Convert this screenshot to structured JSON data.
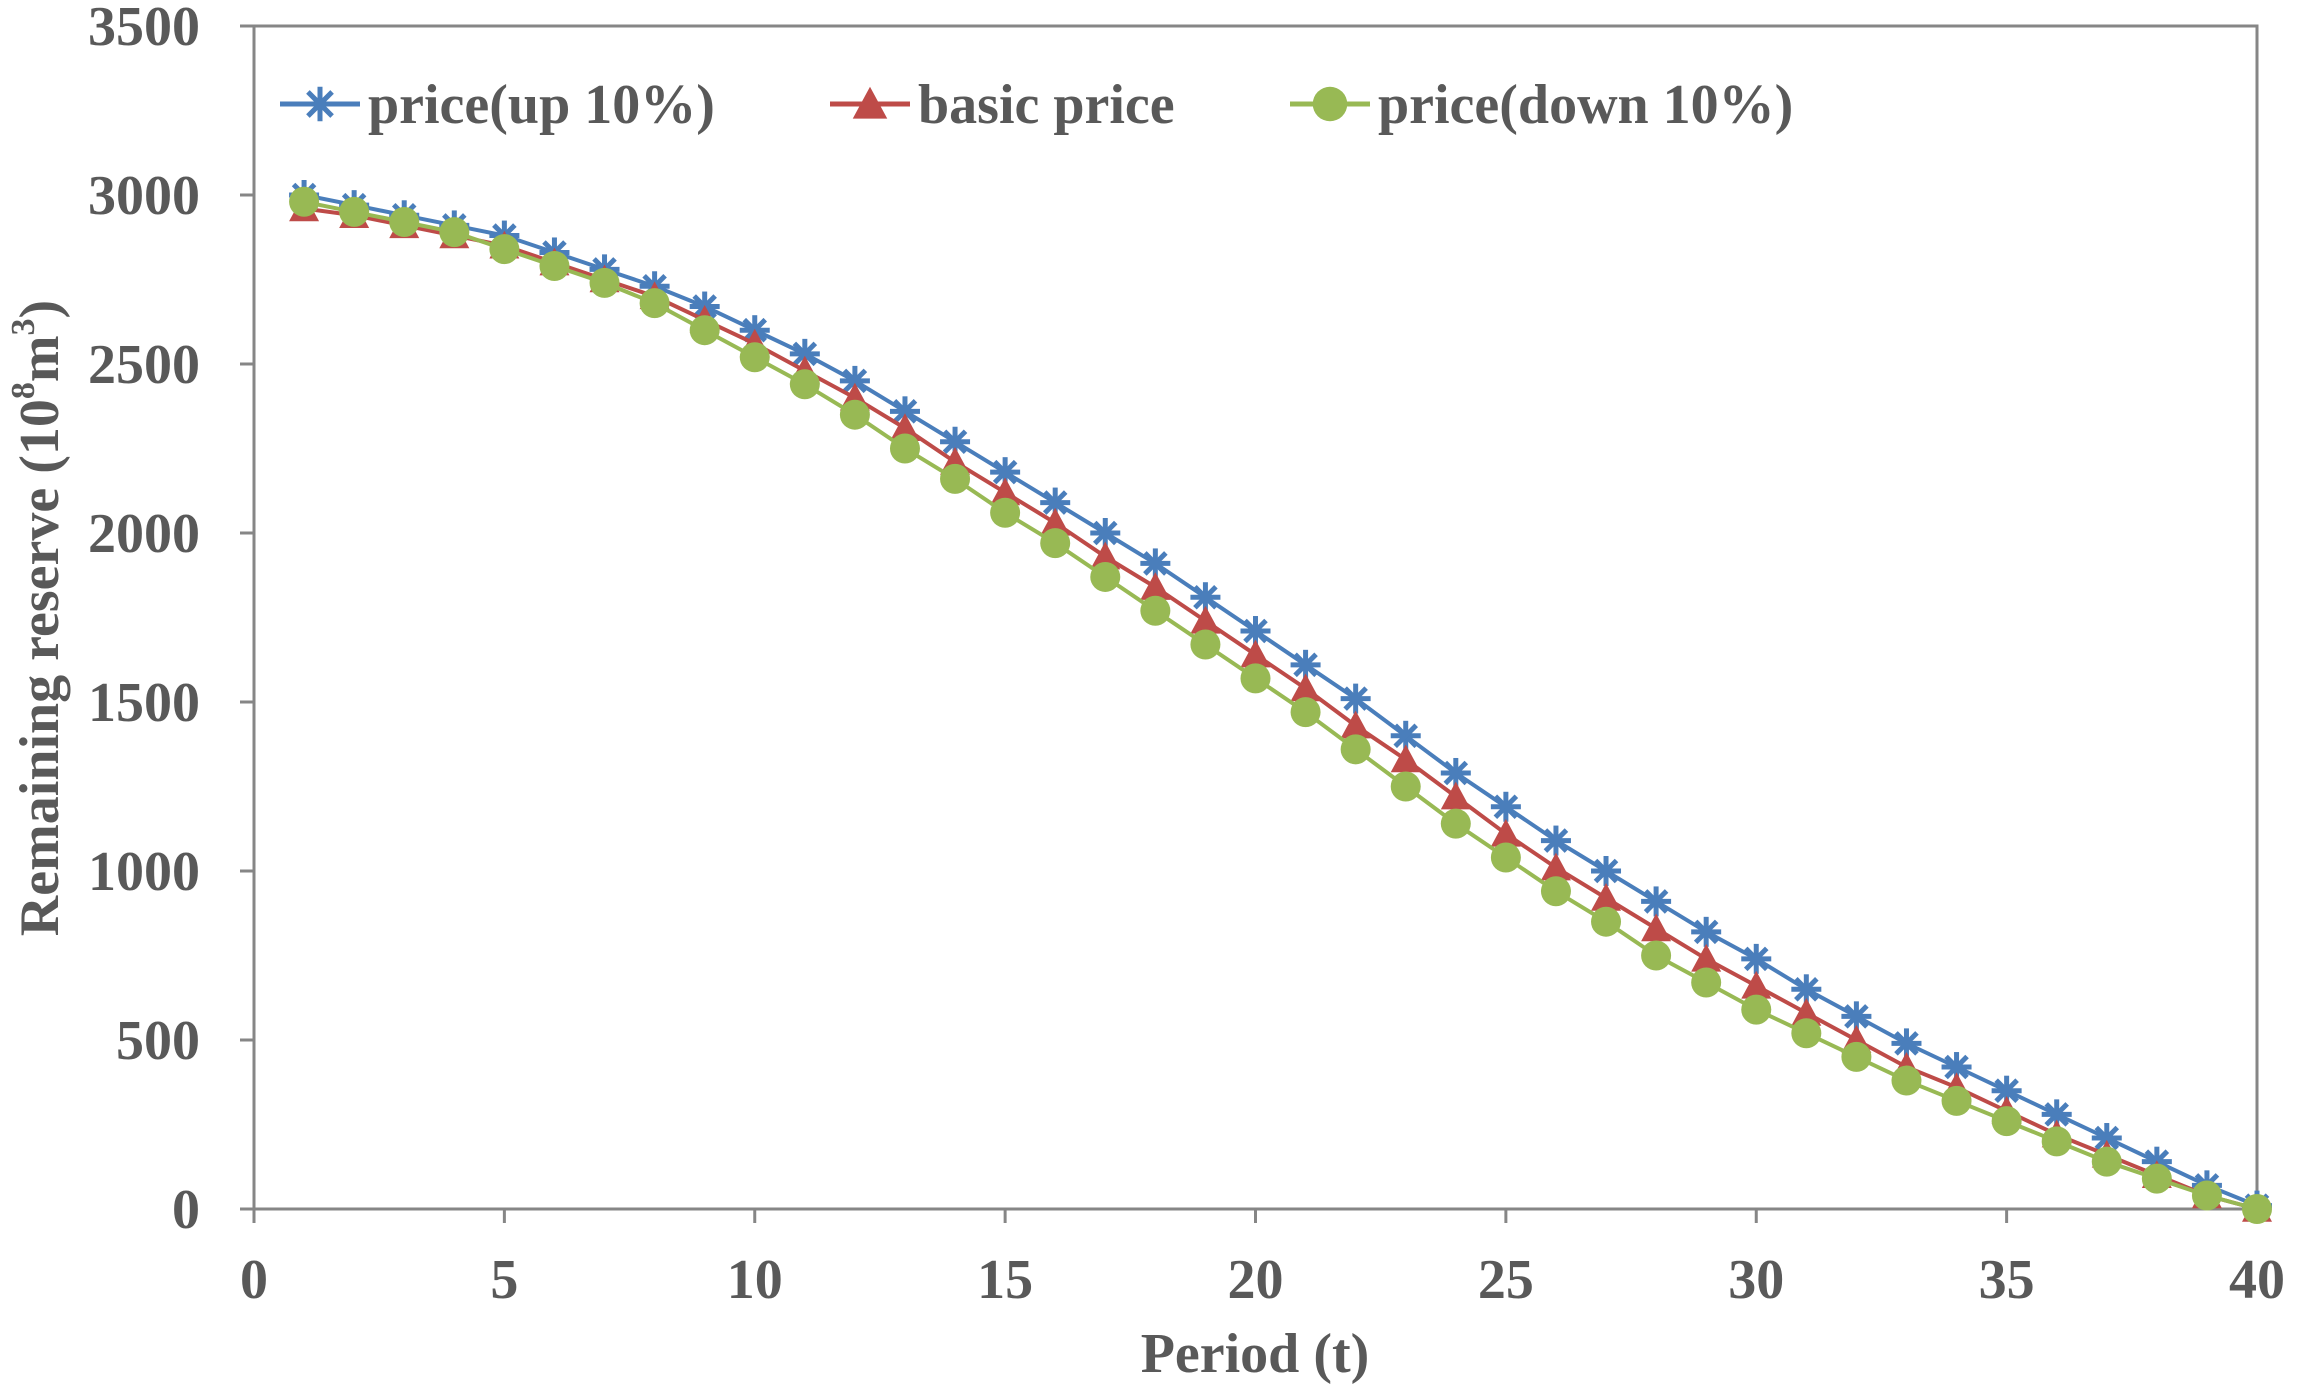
{
  "chart_data": {
    "type": "line",
    "title": "",
    "xlabel": "Period (t)",
    "ylabel_prefix": "Remaining reserve (10",
    "ylabel_sup1": "8",
    "ylabel_mid": "m",
    "ylabel_sup2": "3",
    "ylabel_suffix": ")",
    "xlim": [
      0,
      40
    ],
    "ylim": [
      0,
      3500
    ],
    "xticks": [
      0,
      5,
      10,
      15,
      20,
      25,
      30,
      35,
      40
    ],
    "yticks": [
      0,
      500,
      1000,
      1500,
      2000,
      2500,
      3000,
      3500
    ],
    "grid": false,
    "legend_position": "top",
    "x": [
      1,
      2,
      3,
      4,
      5,
      6,
      7,
      8,
      9,
      10,
      11,
      12,
      13,
      14,
      15,
      16,
      17,
      18,
      19,
      20,
      21,
      22,
      23,
      24,
      25,
      26,
      27,
      28,
      29,
      30,
      31,
      32,
      33,
      34,
      35,
      36,
      37,
      38,
      39,
      40
    ],
    "series": [
      {
        "name": "price(up 10%)",
        "color": "#4a7ebb",
        "marker": "star",
        "values": [
          3000,
          2970,
          2940,
          2910,
          2880,
          2830,
          2780,
          2730,
          2670,
          2600,
          2530,
          2450,
          2360,
          2270,
          2180,
          2090,
          2000,
          1910,
          1810,
          1710,
          1610,
          1510,
          1400,
          1290,
          1190,
          1090,
          1000,
          910,
          820,
          740,
          650,
          570,
          490,
          420,
          350,
          280,
          210,
          140,
          70,
          10
        ]
      },
      {
        "name": "basic price",
        "color": "#be4b48",
        "marker": "triangle",
        "values": [
          2960,
          2940,
          2910,
          2880,
          2850,
          2800,
          2750,
          2700,
          2630,
          2560,
          2480,
          2400,
          2310,
          2210,
          2120,
          2030,
          1930,
          1840,
          1740,
          1640,
          1540,
          1430,
          1330,
          1220,
          1110,
          1010,
          920,
          830,
          740,
          660,
          580,
          500,
          420,
          360,
          290,
          220,
          160,
          100,
          40,
          0
        ]
      },
      {
        "name": "price(down 10%)",
        "color": "#98b954",
        "marker": "circle",
        "values": [
          2980,
          2950,
          2920,
          2890,
          2840,
          2790,
          2740,
          2680,
          2600,
          2520,
          2440,
          2350,
          2250,
          2160,
          2060,
          1970,
          1870,
          1770,
          1670,
          1570,
          1470,
          1360,
          1250,
          1140,
          1040,
          940,
          850,
          750,
          670,
          590,
          520,
          450,
          380,
          320,
          260,
          200,
          140,
          90,
          40,
          0
        ]
      }
    ]
  }
}
